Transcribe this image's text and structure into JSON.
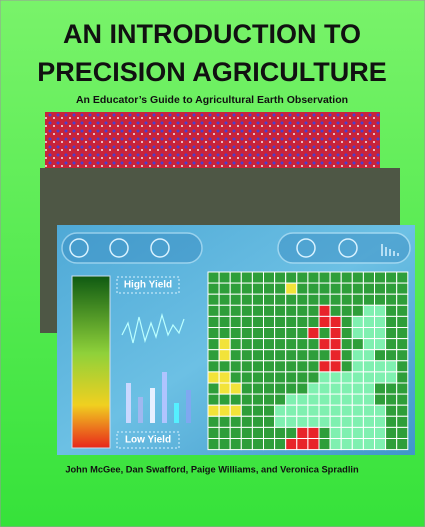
{
  "cover": {
    "title_lines": [
      "AN INTRODUCTION TO",
      "PRECISION AGRICULTURE"
    ],
    "subtitle": "An Educator’s Guide to Agricultural Earth Observation",
    "legend": {
      "high": "High Yield",
      "low": "Low Yield"
    },
    "authors": "John McGee, Dan Swafford, Paige Williams, and Veronica Spradlin"
  }
}
